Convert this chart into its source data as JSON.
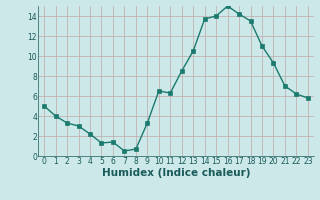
{
  "x": [
    0,
    1,
    2,
    3,
    4,
    5,
    6,
    7,
    8,
    9,
    10,
    11,
    12,
    13,
    14,
    15,
    16,
    17,
    18,
    19,
    20,
    21,
    22,
    23
  ],
  "y": [
    5,
    4,
    3.3,
    3,
    2.2,
    1.3,
    1.4,
    0.5,
    0.7,
    3.3,
    6.5,
    6.3,
    8.5,
    10.5,
    13.7,
    14.0,
    15.0,
    14.2,
    13.5,
    11.0,
    9.3,
    7.0,
    6.2,
    5.8
  ],
  "line_color": "#1a7a6e",
  "marker": "s",
  "markersize": 2.2,
  "linewidth": 1.0,
  "bg_color": "#cce8e8",
  "grid_color": "#c0a8a8",
  "xlabel": "Humidex (Indice chaleur)",
  "xlim": [
    -0.5,
    23.5
  ],
  "ylim": [
    0,
    15
  ],
  "yticks": [
    0,
    2,
    4,
    6,
    8,
    10,
    12,
    14
  ],
  "xticks": [
    0,
    1,
    2,
    3,
    4,
    5,
    6,
    7,
    8,
    9,
    10,
    11,
    12,
    13,
    14,
    15,
    16,
    17,
    18,
    19,
    20,
    21,
    22,
    23
  ],
  "tick_fontsize": 5.5,
  "xlabel_fontsize": 7.5,
  "tick_color": "#1a5a5a",
  "axis_bg": "#cce8e8"
}
